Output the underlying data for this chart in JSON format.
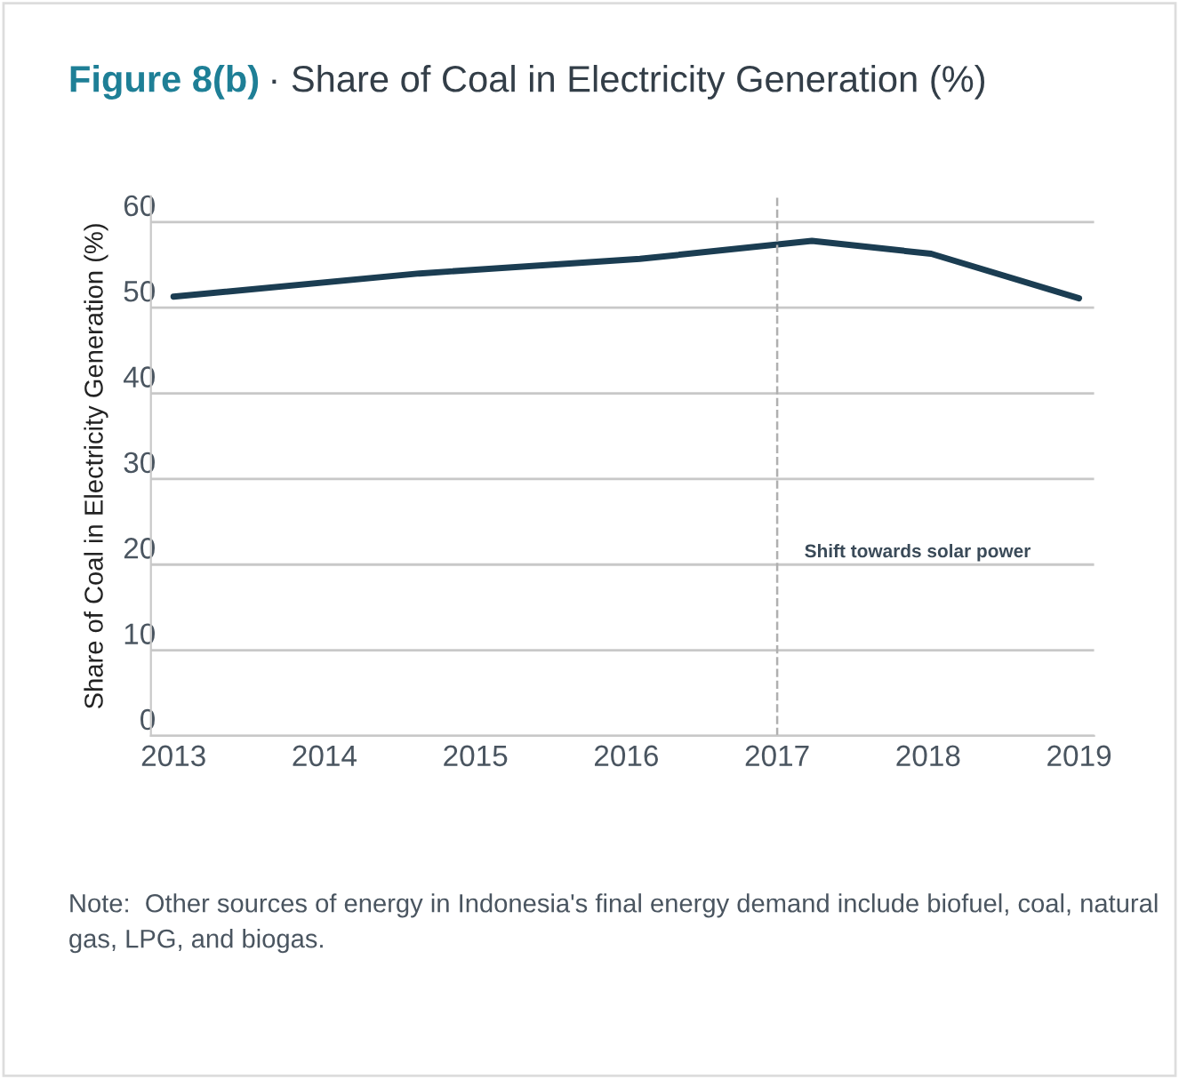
{
  "chart_data": {
    "type": "line",
    "title": "Figure 8(b)",
    "subtitle": "· Share of Coal in Electricity Generation (%)",
    "ylabel": "Share of Coal in Electricity Generation (%)",
    "x": [
      2013,
      2014.63,
      2016.09,
      2017.23,
      2018.02,
      2019
    ],
    "series": [
      {
        "color": "#1b3d52",
        "values": [
          51.3,
          54.0,
          55.7,
          57.8,
          56.3,
          51.1
        ]
      }
    ],
    "xlim": [
      2012.85,
      2019.1
    ],
    "ylim": [
      0,
      63
    ],
    "xticks": [
      2013,
      2014,
      2015,
      2016,
      2017,
      2018,
      2019
    ],
    "yticks": [
      0,
      10,
      20,
      30,
      40,
      50,
      60
    ],
    "grid": "y",
    "marker": "none",
    "line_style": "solid",
    "ref_lines": [
      {
        "axis": "x",
        "value": 2017,
        "label": "Shift towards solar power",
        "color": "#b0b0b0",
        "line_style": "dashed"
      }
    ],
    "annotations": [
      "Note:  Other sources of energy in Indonesia's final energy demand include biofuel, coal, natural gas, LPG, and biogas."
    ]
  }
}
